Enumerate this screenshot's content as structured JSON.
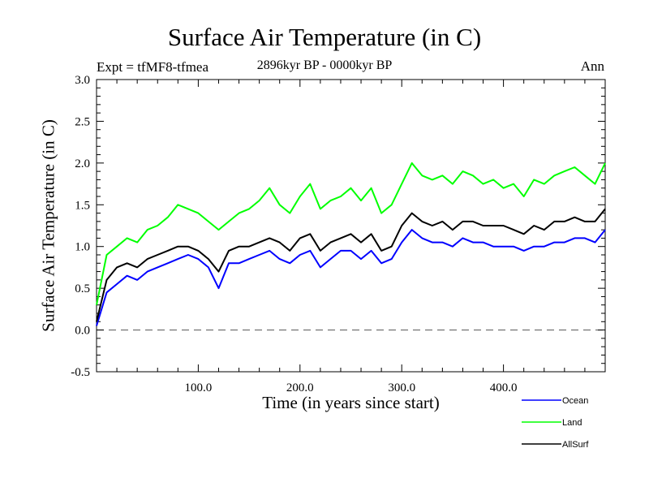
{
  "chart_data": {
    "type": "line",
    "title": "Surface Air Temperature (in C)",
    "subtitle": "2896kyr BP - 0000kyr BP",
    "annotation_left": "Expt = tfMF8-tfmea",
    "annotation_right": "Ann",
    "xlabel": "Time (in years since start)",
    "ylabel": "Surface Air Temperature (in C)",
    "xlim": [
      0,
      500
    ],
    "ylim": [
      -0.5,
      3.0
    ],
    "x_ticks": [
      100,
      200,
      300,
      400
    ],
    "x_tick_labels": [
      "100.0",
      "200.0",
      "300.0",
      "400.0"
    ],
    "x_minor_step": 20,
    "y_ticks": [
      -0.5,
      0.0,
      0.5,
      1.0,
      1.5,
      2.0,
      2.5,
      3.0
    ],
    "y_tick_labels": [
      "-0.5",
      "0.0",
      "0.5",
      "1.0",
      "1.5",
      "2.0",
      "2.5",
      "3.0"
    ],
    "y_minor_step": 0.1,
    "reference_line": {
      "y": 0.0,
      "style": "dashed",
      "color": "#555555"
    },
    "grid": false,
    "legend_position": "bottom-right",
    "x": [
      0,
      10,
      20,
      30,
      40,
      50,
      60,
      70,
      80,
      90,
      100,
      110,
      120,
      130,
      140,
      150,
      160,
      170,
      180,
      190,
      200,
      210,
      220,
      230,
      240,
      250,
      260,
      270,
      280,
      290,
      300,
      310,
      320,
      330,
      340,
      350,
      360,
      370,
      380,
      390,
      400,
      410,
      420,
      430,
      440,
      450,
      460,
      470,
      480,
      490,
      500
    ],
    "series": [
      {
        "name": "Ocean",
        "color": "#0000ff",
        "values": [
          0.05,
          0.45,
          0.55,
          0.65,
          0.6,
          0.7,
          0.75,
          0.8,
          0.85,
          0.9,
          0.85,
          0.75,
          0.5,
          0.8,
          0.8,
          0.85,
          0.9,
          0.95,
          0.85,
          0.8,
          0.9,
          0.95,
          0.75,
          0.85,
          0.95,
          0.95,
          0.85,
          0.95,
          0.8,
          0.85,
          1.05,
          1.2,
          1.1,
          1.05,
          1.05,
          1.0,
          1.1,
          1.05,
          1.05,
          1.0,
          1.0,
          1.0,
          0.95,
          1.0,
          1.0,
          1.05,
          1.05,
          1.1,
          1.1,
          1.05,
          1.2
        ]
      },
      {
        "name": "Land",
        "color": "#00ff00",
        "values": [
          0.3,
          0.9,
          1.0,
          1.1,
          1.05,
          1.2,
          1.25,
          1.35,
          1.5,
          1.45,
          1.4,
          1.3,
          1.2,
          1.3,
          1.4,
          1.45,
          1.55,
          1.7,
          1.5,
          1.4,
          1.6,
          1.75,
          1.45,
          1.55,
          1.6,
          1.7,
          1.55,
          1.7,
          1.4,
          1.5,
          1.75,
          2.0,
          1.85,
          1.8,
          1.85,
          1.75,
          1.9,
          1.85,
          1.75,
          1.8,
          1.7,
          1.75,
          1.6,
          1.8,
          1.75,
          1.85,
          1.9,
          1.95,
          1.85,
          1.75,
          2.0
        ]
      },
      {
        "name": "AllSurf",
        "color": "#000000",
        "values": [
          0.1,
          0.6,
          0.75,
          0.8,
          0.75,
          0.85,
          0.9,
          0.95,
          1.0,
          1.0,
          0.95,
          0.85,
          0.7,
          0.95,
          1.0,
          1.0,
          1.05,
          1.1,
          1.05,
          0.95,
          1.1,
          1.15,
          0.95,
          1.05,
          1.1,
          1.15,
          1.05,
          1.15,
          0.95,
          1.0,
          1.25,
          1.4,
          1.3,
          1.25,
          1.3,
          1.2,
          1.3,
          1.3,
          1.25,
          1.25,
          1.25,
          1.2,
          1.15,
          1.25,
          1.2,
          1.3,
          1.3,
          1.35,
          1.3,
          1.3,
          1.45
        ]
      }
    ]
  }
}
